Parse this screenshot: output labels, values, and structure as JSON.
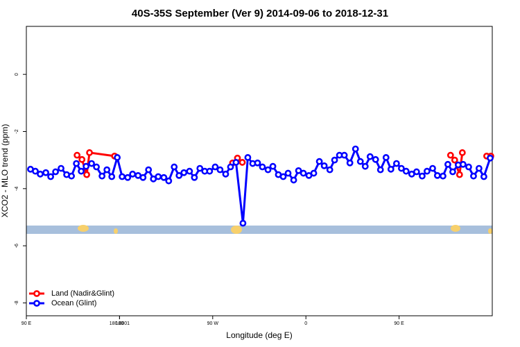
{
  "chart_data": {
    "type": "line",
    "title": "40S-35S September (Ver 9)   2014-09-06 to 2018-12-31",
    "x_label": "Longitude (deg E)",
    "y_label": "XCO2 - MLO trend (ppm)",
    "xlim": [
      90,
      540
    ],
    "ylim": [
      -8.45,
      1.68
    ],
    "xticks": [
      {
        "value": 90,
        "label": "90 E"
      },
      180,
      {
        "value": 270,
        "label": "90 W"
      },
      {
        "value": 360,
        "label": "0"
      },
      {
        "value": 450,
        "label": "90 E"
      },
      180.0001
    ],
    "yticks": [
      0,
      -2,
      -4,
      -6,
      -8
    ],
    "legend": "bottom-left",
    "series": [
      {
        "name": "Land (Nadir&Glint)",
        "color": "#ff0000",
        "x": [
          139.0,
          143.7,
          148.3,
          151.0,
          175.2,
          null,
          289.2,
          293.9,
          298.6,
          null,
          499.7,
          503.7,
          508.4,
          511.1,
          null,
          534.6,
          538.6
        ],
        "values": [
          -2.83,
          -2.98,
          -3.51,
          -2.74,
          -2.86,
          null,
          -3.1,
          -2.93,
          -3.08,
          null,
          -2.83,
          -3.0,
          -3.51,
          -2.74,
          null,
          -2.86,
          -2.86
        ]
      },
      {
        "name": "Ocean (Glint)",
        "color": "#0000ff",
        "x": [
          94.0,
          98.7,
          103.4,
          108.8,
          113.5,
          118.2,
          123.5,
          128.9,
          133.6,
          138.3,
          143.0,
          147.7,
          153.0,
          157.7,
          163.1,
          167.8,
          172.5,
          177.8,
          182.5,
          187.9,
          192.6,
          197.9,
          202.7,
          208.0,
          212.7,
          217.4,
          222.8,
          227.5,
          232.8,
          237.5,
          242.2,
          247.6,
          252.3,
          257.6,
          262.3,
          267.0,
          272.4,
          277.1,
          282.5,
          287.2,
          292.5,
          299.2,
          303.9,
          308.6,
          313.3,
          318.0,
          323.4,
          328.1,
          333.4,
          338.1,
          342.8,
          348.2,
          352.9,
          357.6,
          362.9,
          367.6,
          373.0,
          377.7,
          383.1,
          387.7,
          392.4,
          397.1,
          402.5,
          407.9,
          412.6,
          417.3,
          422.0,
          427.3,
          432.0,
          437.4,
          442.1,
          447.5,
          452.2,
          456.8,
          462.2,
          466.9,
          472.3,
          477.0,
          482.4,
          487.0,
          492.4,
          497.1,
          501.8,
          507.1,
          511.8,
          517.2,
          521.9,
          527.2,
          531.9,
          538.0
        ],
        "values": [
          -3.32,
          -3.39,
          -3.49,
          -3.44,
          -3.58,
          -3.41,
          -3.29,
          -3.51,
          -3.56,
          -3.12,
          -3.39,
          -3.22,
          -3.12,
          -3.24,
          -3.56,
          -3.34,
          -3.58,
          -2.91,
          -3.58,
          -3.61,
          -3.49,
          -3.54,
          -3.61,
          -3.34,
          -3.66,
          -3.58,
          -3.61,
          -3.73,
          -3.24,
          -3.54,
          -3.44,
          -3.39,
          -3.61,
          -3.29,
          -3.39,
          -3.39,
          -3.24,
          -3.34,
          -3.49,
          -3.24,
          -3.08,
          -5.21,
          -2.91,
          -3.12,
          -3.1,
          -3.24,
          -3.34,
          -3.22,
          -3.51,
          -3.58,
          -3.46,
          -3.7,
          -3.37,
          -3.46,
          -3.54,
          -3.46,
          -3.05,
          -3.2,
          -3.34,
          -3.0,
          -2.83,
          -2.83,
          -3.1,
          -2.61,
          -3.05,
          -3.22,
          -2.88,
          -2.98,
          -3.34,
          -2.91,
          -3.32,
          -3.12,
          -3.29,
          -3.39,
          -3.49,
          -3.41,
          -3.56,
          -3.39,
          -3.29,
          -3.54,
          -3.56,
          -3.15,
          -3.41,
          -3.17,
          -3.15,
          -3.24,
          -3.56,
          -3.29,
          -3.58,
          -2.93
        ]
      }
    ]
  }
}
